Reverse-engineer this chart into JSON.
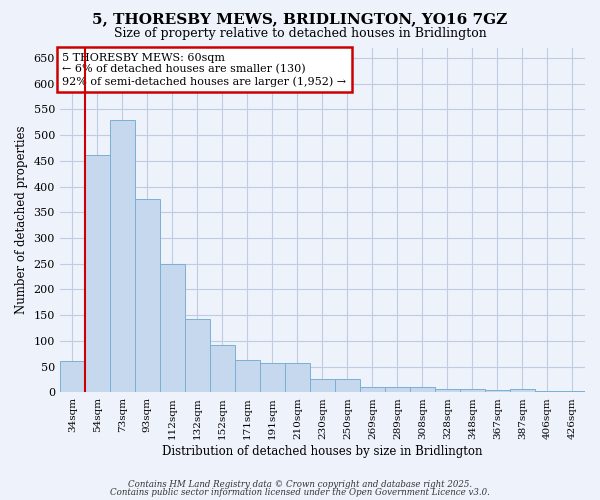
{
  "title": "5, THORESBY MEWS, BRIDLINGTON, YO16 7GZ",
  "subtitle": "Size of property relative to detached houses in Bridlington",
  "xlabel": "Distribution of detached houses by size in Bridlington",
  "ylabel": "Number of detached properties",
  "categories": [
    "34sqm",
    "54sqm",
    "73sqm",
    "93sqm",
    "112sqm",
    "132sqm",
    "152sqm",
    "171sqm",
    "191sqm",
    "210sqm",
    "230sqm",
    "250sqm",
    "269sqm",
    "289sqm",
    "308sqm",
    "328sqm",
    "348sqm",
    "367sqm",
    "387sqm",
    "406sqm",
    "426sqm"
  ],
  "values": [
    62,
    462,
    530,
    375,
    250,
    143,
    93,
    63,
    57,
    57,
    27,
    27,
    10,
    10,
    10,
    6,
    6,
    5,
    6,
    3,
    3
  ],
  "bar_color": "#c5d8ee",
  "bar_edge_color": "#7ab0d4",
  "background_color": "#eef2fb",
  "grid_color": "#c0cce0",
  "red_line_x": 0.5,
  "annotation_text": "5 THORESBY MEWS: 60sqm\n← 6% of detached houses are smaller (130)\n92% of semi-detached houses are larger (1,952) →",
  "annotation_box_color": "#ffffff",
  "annotation_box_edge": "#cc0000",
  "red_line_color": "#cc0000",
  "ylim": [
    0,
    670
  ],
  "yticks": [
    0,
    50,
    100,
    150,
    200,
    250,
    300,
    350,
    400,
    450,
    500,
    550,
    600,
    650
  ],
  "footer1": "Contains HM Land Registry data © Crown copyright and database right 2025.",
  "footer2": "Contains public sector information licensed under the Open Government Licence v3.0."
}
